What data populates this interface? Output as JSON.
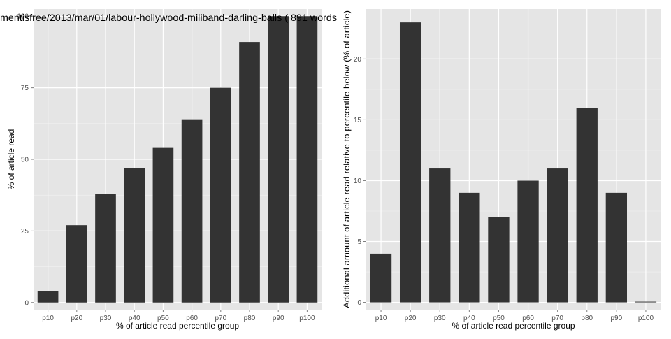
{
  "title": "mentisfree/2013/mar/01/labour-hollywood-miliband-darling-balls ( 891 words",
  "chart_data": [
    {
      "type": "bar",
      "categories": [
        "p10",
        "p20",
        "p30",
        "p40",
        "p50",
        "p60",
        "p70",
        "p80",
        "p90",
        "p100"
      ],
      "values": [
        4,
        27,
        38,
        47,
        54,
        64,
        75,
        91,
        100,
        100
      ],
      "xlabel": "% of article read percentile group",
      "ylabel": "% of article read",
      "ylim": [
        -2.5,
        102.5
      ],
      "yticks": [
        0,
        25,
        50,
        75,
        100
      ],
      "grid": true,
      "bar_color": "#333333",
      "panel_color": "#e5e5e5"
    },
    {
      "type": "bar",
      "categories": [
        "p10",
        "p20",
        "p30",
        "p40",
        "p50",
        "p60",
        "p70",
        "p80",
        "p90",
        "p100"
      ],
      "values": [
        4,
        23,
        11,
        9,
        7,
        10,
        11,
        16,
        9,
        0
      ],
      "xlabel": "% of article read percentile group",
      "ylabel": "Additional amount of article read relative to percentile below (% of article)",
      "ylim": [
        -0.6,
        24.1
      ],
      "yticks": [
        0,
        5,
        10,
        15,
        20
      ],
      "grid": true,
      "bar_color": "#333333",
      "panel_color": "#e5e5e5"
    }
  ]
}
